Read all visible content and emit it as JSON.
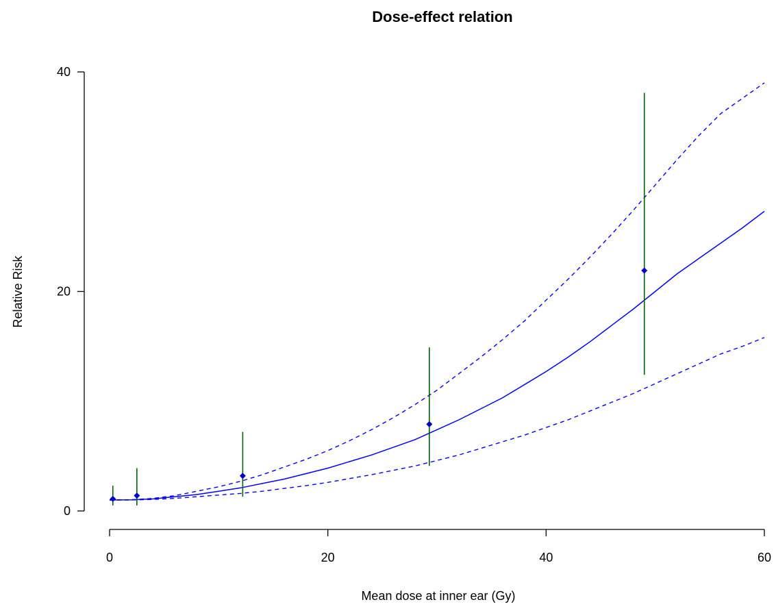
{
  "chart_data": {
    "type": "line",
    "title": "Dose-effect relation",
    "xlabel": "Mean dose at inner ear (Gy)",
    "ylabel": "Relative Risk",
    "xlim": [
      0,
      60
    ],
    "ylim": [
      0,
      40
    ],
    "x_ticks": [
      "0",
      "20",
      "40",
      "60"
    ],
    "y_ticks": [
      "0",
      "20",
      "40"
    ],
    "grid": false,
    "legend": "none",
    "colors": {
      "fit": "#0000ff",
      "points": "#0000cc",
      "error_bars": "#006400"
    },
    "fit_curve": {
      "x": [
        0,
        2,
        4,
        6,
        8,
        10,
        12,
        14,
        16,
        18,
        20,
        22,
        24,
        26,
        28,
        30,
        32,
        34,
        36,
        38,
        40,
        42,
        44,
        46,
        48,
        50,
        52,
        54,
        56,
        58,
        60
      ],
      "estimate": [
        1.0,
        1.01,
        1.1,
        1.3,
        1.5,
        1.8,
        2.1,
        2.5,
        2.9,
        3.4,
        3.9,
        4.5,
        5.1,
        5.8,
        6.5,
        7.4,
        8.3,
        9.3,
        10.3,
        11.5,
        12.7,
        14.0,
        15.4,
        16.9,
        18.4,
        20.0,
        21.6,
        23.0,
        24.4,
        25.8,
        27.3
      ],
      "lower": [
        1.0,
        1.0,
        1.05,
        1.15,
        1.3,
        1.45,
        1.6,
        1.8,
        2.05,
        2.3,
        2.6,
        2.95,
        3.3,
        3.7,
        4.1,
        4.6,
        5.1,
        5.7,
        6.3,
        6.9,
        7.6,
        8.3,
        9.1,
        9.9,
        10.7,
        11.6,
        12.5,
        13.4,
        14.3,
        15.0,
        15.8
      ],
      "upper": [
        1.0,
        1.02,
        1.15,
        1.4,
        1.8,
        2.2,
        2.7,
        3.3,
        4.0,
        4.7,
        5.5,
        6.4,
        7.4,
        8.5,
        9.7,
        11.0,
        12.5,
        14.0,
        15.6,
        17.3,
        19.2,
        21.1,
        23.1,
        25.2,
        27.4,
        29.7,
        32.0,
        34.2,
        36.2,
        37.6,
        39.0
      ]
    },
    "points": [
      {
        "x": 0.3,
        "y": 1.1,
        "lower": 0.5,
        "upper": 2.3
      },
      {
        "x": 2.5,
        "y": 1.4,
        "lower": 0.5,
        "upper": 3.9
      },
      {
        "x": 12.2,
        "y": 3.2,
        "lower": 1.3,
        "upper": 7.2
      },
      {
        "x": 29.3,
        "y": 7.9,
        "lower": 4.1,
        "upper": 14.9
      },
      {
        "x": 49.0,
        "y": 21.9,
        "lower": 12.4,
        "upper": 38.1
      }
    ]
  }
}
